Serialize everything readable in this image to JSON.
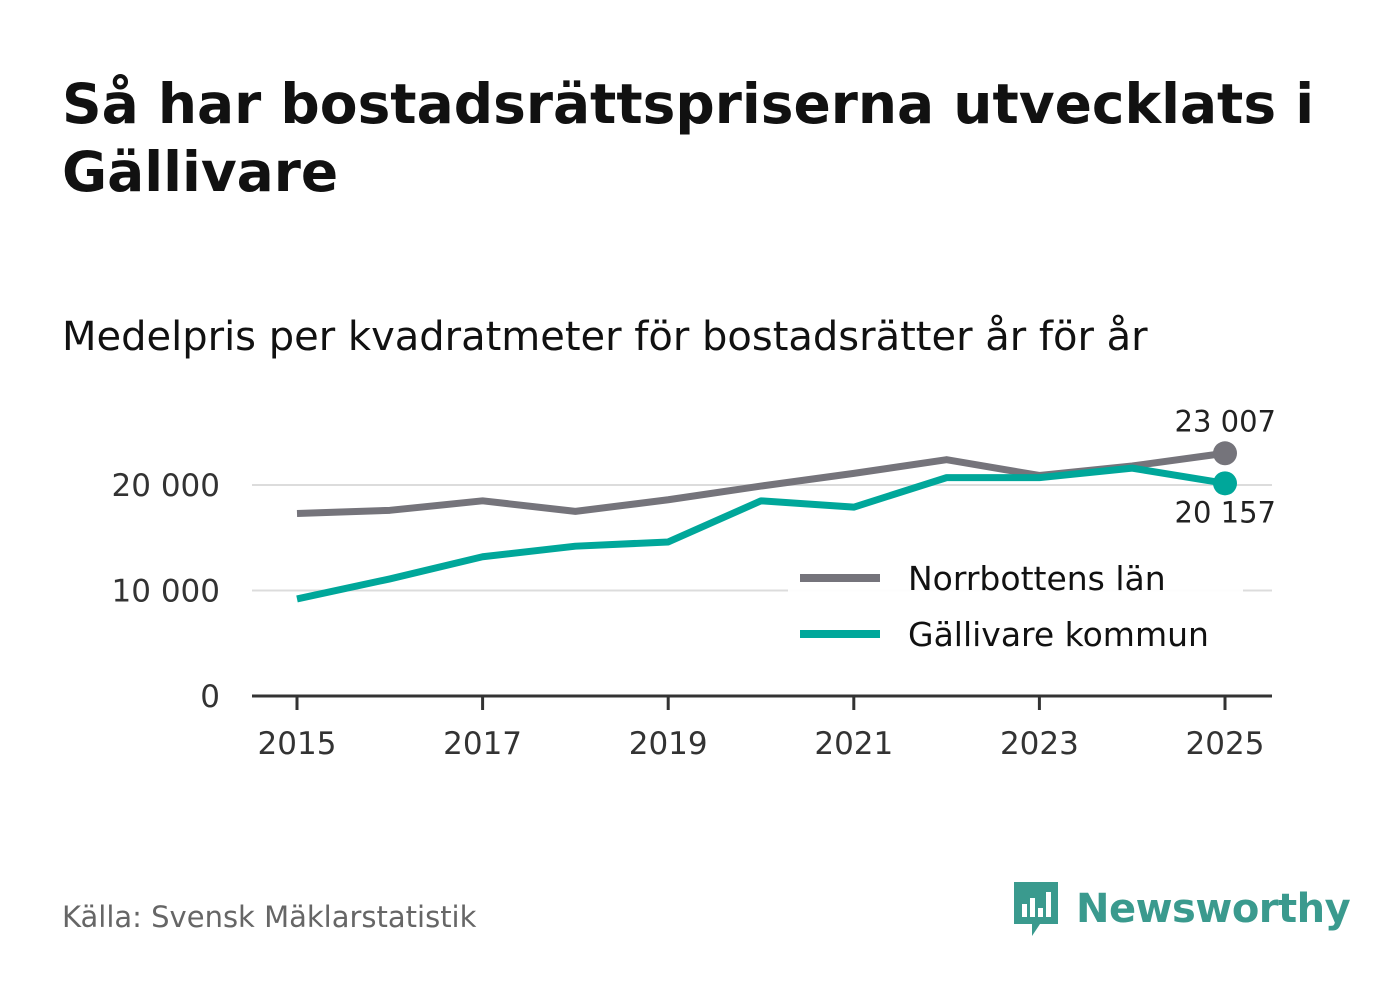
{
  "title": "Så har bostadsrättspriserna utvecklats i Gällivare",
  "subtitle": "Medelpris per kvadratmeter för bostadsrätter år för år",
  "source": "Källa: Svensk Mäklarstatistik",
  "brand": {
    "name": "Newsworthy",
    "logo_icon": "newsworthy-logo-icon"
  },
  "colors": {
    "norrbotten": "#75747b",
    "gallivare": "#00a79a",
    "grid": "#dcdcdc",
    "axis": "#333333",
    "brand": "#3a9a8e"
  },
  "chart_data": {
    "type": "line",
    "x": [
      2015,
      2016,
      2017,
      2018,
      2019,
      2020,
      2021,
      2022,
      2023,
      2024,
      2025
    ],
    "x_ticks": [
      "2015",
      "2017",
      "2019",
      "2021",
      "2023",
      "2025"
    ],
    "y_ticks": [
      0,
      10000,
      20000
    ],
    "y_tick_labels": [
      "0",
      "10 000",
      "20 000"
    ],
    "ylim": [
      0,
      25000
    ],
    "grid": true,
    "legend_position": "bottom-right",
    "series": [
      {
        "name": "Norrbottens län",
        "color": "#75747b",
        "values": [
          17300,
          17600,
          18500,
          17500,
          18600,
          19900,
          21100,
          22400,
          20900,
          21800,
          23007
        ],
        "end_label": "23 007"
      },
      {
        "name": "Gällivare kommun",
        "color": "#00a79a",
        "values": [
          9200,
          11100,
          13200,
          14200,
          14600,
          18500,
          17900,
          20700,
          20700,
          21600,
          20157
        ],
        "end_label": "20 157"
      }
    ]
  }
}
